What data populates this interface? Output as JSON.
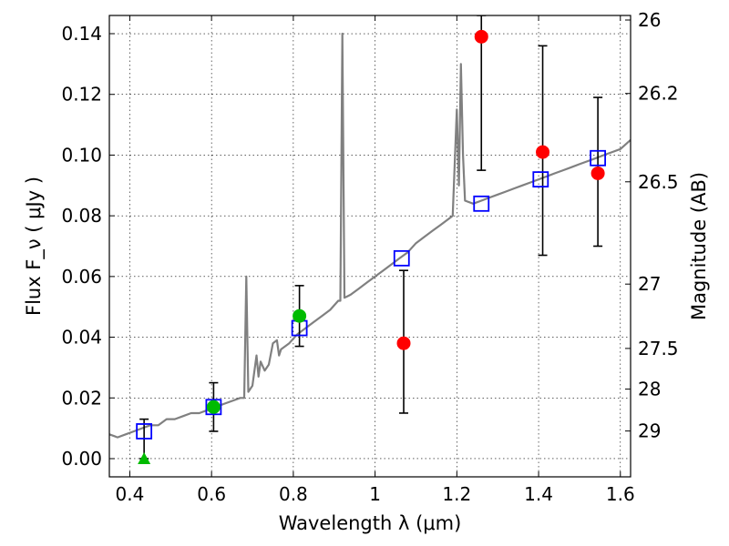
{
  "chart_data": {
    "type": "scatter",
    "xlabel": "Wavelength  λ (μm)",
    "ylabel": "Flux  F_ν  ( μJy )",
    "ylabel_right": "Magnitude (AB)",
    "xlim": [
      0.35,
      1.625
    ],
    "ylim": [
      -0.006,
      0.146
    ],
    "grid": true,
    "x_ticks": [
      0.4,
      0.6,
      0.8,
      1.0,
      1.2,
      1.4,
      1.6
    ],
    "x_tick_labels": [
      "0.4",
      "0.6",
      "0.8",
      "1",
      "1.2",
      "1.4",
      "1.6"
    ],
    "y_ticks": [
      0.0,
      0.02,
      0.04,
      0.06,
      0.08,
      0.1,
      0.12,
      0.14
    ],
    "y_tick_labels": [
      "0.00",
      "0.02",
      "0.04",
      "0.06",
      "0.08",
      "0.10",
      "0.12",
      "0.14"
    ],
    "right_ticks": [
      {
        "label": "26",
        "flux": 0.1445
      },
      {
        "label": "26.2",
        "flux": 0.1203
      },
      {
        "label": "26.5",
        "flux": 0.0912
      },
      {
        "label": "27",
        "flux": 0.0575
      },
      {
        "label": "27.5",
        "flux": 0.0363
      },
      {
        "label": "28",
        "flux": 0.0229
      },
      {
        "label": "29",
        "flux": 0.0091
      }
    ],
    "colors": {
      "model_spectrum": "#808080",
      "model_photometry": "#0000ff",
      "detections": "#00bb00",
      "nir_measurements": "#ff0000",
      "upper_limit": "#00bb00",
      "error_bars": "#000000"
    },
    "series": [
      {
        "marker": "line",
        "color": "#808080",
        "points": [
          [
            0.35,
            0.008
          ],
          [
            0.37,
            0.007
          ],
          [
            0.39,
            0.008
          ],
          [
            0.41,
            0.009
          ],
          [
            0.43,
            0.01
          ],
          [
            0.45,
            0.011
          ],
          [
            0.47,
            0.011
          ],
          [
            0.49,
            0.013
          ],
          [
            0.51,
            0.013
          ],
          [
            0.53,
            0.014
          ],
          [
            0.55,
            0.015
          ],
          [
            0.57,
            0.015
          ],
          [
            0.59,
            0.016
          ],
          [
            0.61,
            0.017
          ],
          [
            0.63,
            0.018
          ],
          [
            0.65,
            0.019
          ],
          [
            0.67,
            0.02
          ],
          [
            0.68,
            0.02
          ],
          [
            0.685,
            0.06
          ],
          [
            0.69,
            0.022
          ],
          [
            0.7,
            0.024
          ],
          [
            0.71,
            0.034
          ],
          [
            0.715,
            0.027
          ],
          [
            0.72,
            0.032
          ],
          [
            0.73,
            0.029
          ],
          [
            0.74,
            0.031
          ],
          [
            0.75,
            0.038
          ],
          [
            0.76,
            0.039
          ],
          [
            0.765,
            0.034
          ],
          [
            0.77,
            0.036
          ],
          [
            0.79,
            0.038
          ],
          [
            0.81,
            0.041
          ],
          [
            0.83,
            0.043
          ],
          [
            0.85,
            0.045
          ],
          [
            0.87,
            0.047
          ],
          [
            0.89,
            0.049
          ],
          [
            0.91,
            0.052
          ],
          [
            0.915,
            0.052
          ],
          [
            0.92,
            0.14
          ],
          [
            0.925,
            0.053
          ],
          [
            0.94,
            0.054
          ],
          [
            0.96,
            0.056
          ],
          [
            0.98,
            0.058
          ],
          [
            1.0,
            0.06
          ],
          [
            1.02,
            0.062
          ],
          [
            1.04,
            0.064
          ],
          [
            1.06,
            0.066
          ],
          [
            1.08,
            0.068
          ],
          [
            1.1,
            0.071
          ],
          [
            1.12,
            0.073
          ],
          [
            1.14,
            0.075
          ],
          [
            1.16,
            0.077
          ],
          [
            1.18,
            0.079
          ],
          [
            1.19,
            0.08
          ],
          [
            1.2,
            0.115
          ],
          [
            1.205,
            0.09
          ],
          [
            1.21,
            0.13
          ],
          [
            1.215,
            0.1
          ],
          [
            1.22,
            0.085
          ],
          [
            1.24,
            0.084
          ],
          [
            1.26,
            0.085
          ],
          [
            1.28,
            0.086
          ],
          [
            1.3,
            0.087
          ],
          [
            1.32,
            0.088
          ],
          [
            1.34,
            0.089
          ],
          [
            1.36,
            0.09
          ],
          [
            1.38,
            0.091
          ],
          [
            1.4,
            0.092
          ],
          [
            1.42,
            0.093
          ],
          [
            1.44,
            0.094
          ],
          [
            1.46,
            0.095
          ],
          [
            1.48,
            0.096
          ],
          [
            1.5,
            0.097
          ],
          [
            1.52,
            0.098
          ],
          [
            1.54,
            0.099
          ],
          [
            1.56,
            0.1
          ],
          [
            1.58,
            0.101
          ],
          [
            1.6,
            0.102
          ],
          [
            1.625,
            0.105
          ]
        ]
      },
      {
        "marker": "open-square",
        "color": "#0000ff",
        "points": [
          [
            0.435,
            0.009
          ],
          [
            0.605,
            0.017
          ],
          [
            0.815,
            0.043
          ],
          [
            1.065,
            0.066
          ],
          [
            1.26,
            0.084
          ],
          [
            1.405,
            0.092
          ],
          [
            1.545,
            0.099
          ]
        ]
      },
      {
        "marker": "filled-circle",
        "color": "#00bb00",
        "points": [
          {
            "x": 0.605,
            "y": 0.017,
            "yerr_low": 0.009,
            "yerr_high": 0.025
          },
          {
            "x": 0.815,
            "y": 0.047,
            "yerr_low": 0.037,
            "yerr_high": 0.057
          }
        ]
      },
      {
        "marker": "filled-circle",
        "color": "#ff0000",
        "points": [
          {
            "x": 1.07,
            "y": 0.038,
            "yerr_low": 0.015,
            "yerr_high": 0.062
          },
          {
            "x": 1.26,
            "y": 0.139,
            "yerr_low": 0.095,
            "yerr_high": 0.146
          },
          {
            "x": 1.41,
            "y": 0.101,
            "yerr_low": 0.067,
            "yerr_high": 0.136
          },
          {
            "x": 1.545,
            "y": 0.094,
            "yerr_low": 0.07,
            "yerr_high": 0.119
          }
        ]
      },
      {
        "marker": "triangle-up",
        "color": "#00bb00",
        "points": [
          {
            "x": 0.435,
            "y": 0.0,
            "yerr_low": 0.0,
            "yerr_high": 0.013
          }
        ]
      }
    ]
  }
}
